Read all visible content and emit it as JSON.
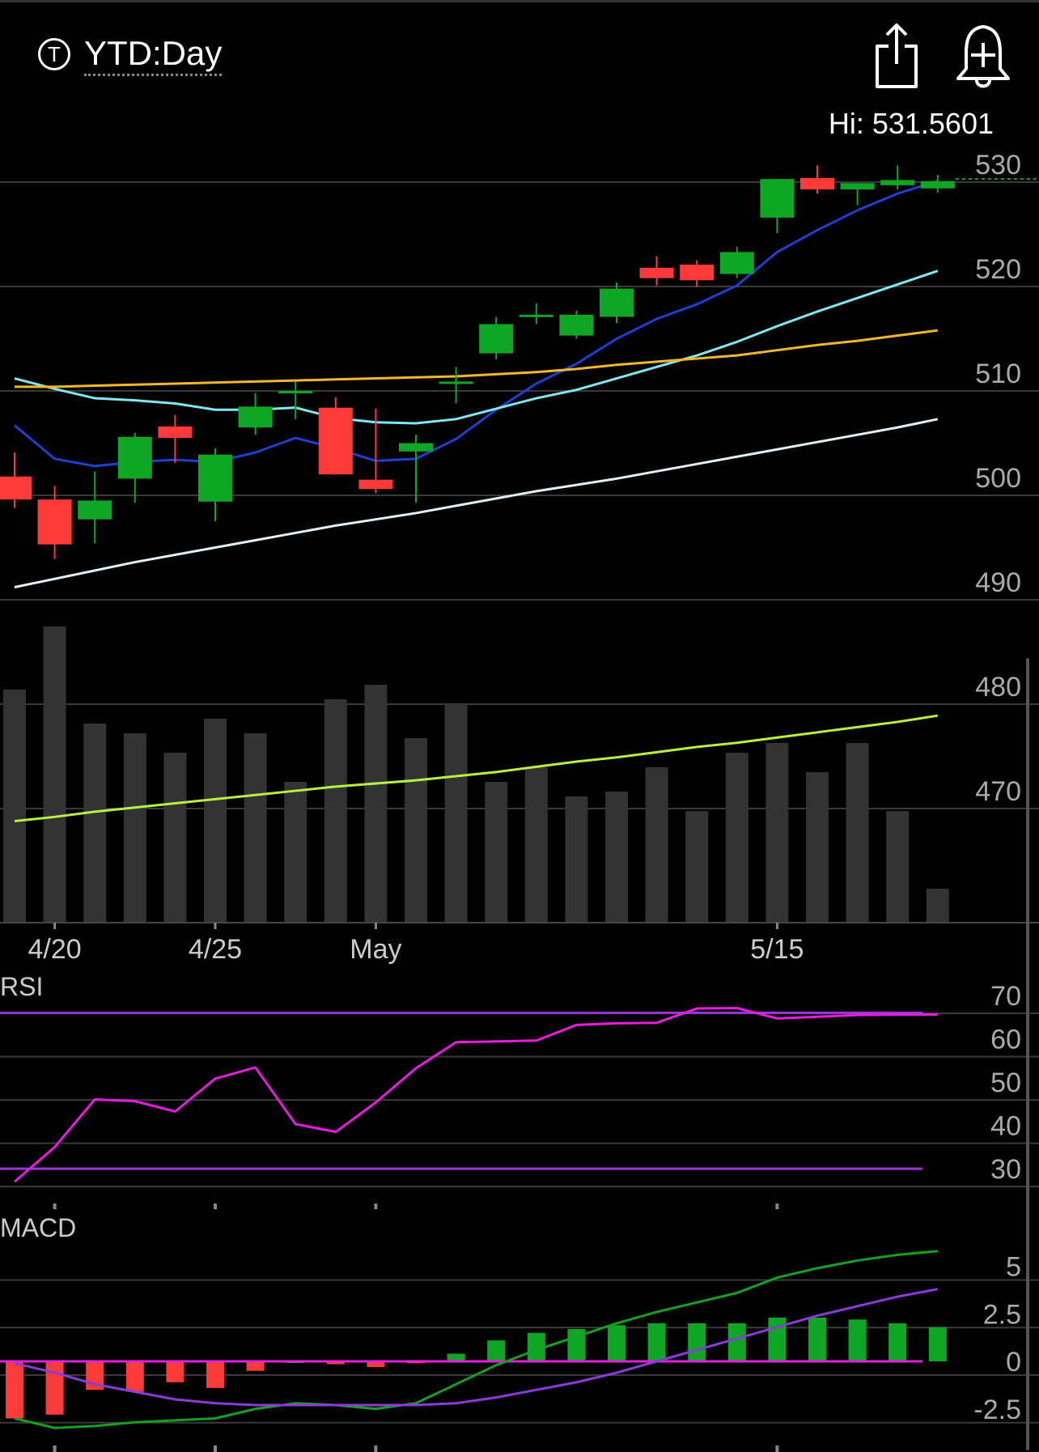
{
  "header": {
    "ticker_icon_text": "T",
    "period_label": "YTD:Day",
    "share_icon": "share-icon",
    "alert_icon": "bell-plus-icon"
  },
  "colors": {
    "up": "#0fa626",
    "down": "#fc3a3a",
    "volume": "#333333",
    "ma_blue": "#1e3fd0",
    "ma_cyan": "#7fe8f0",
    "ma_yellow": "#f2b82a",
    "ma_white": "#e0f0f8",
    "ma_lime": "#b8f040",
    "rsi_line": "#e81ce0",
    "rsi_band": "#9a34d8",
    "macd_line": "#14a020",
    "signal_line": "#8a3ad8",
    "grid": "#3a3a3a",
    "axis_text": "#aaaaaa"
  },
  "chart_data": [
    {
      "type": "candlestick",
      "annotation": "Hi: 531.5601",
      "ylim": [
        460,
        533
      ],
      "y_ticks": [
        530,
        520,
        510,
        500,
        490,
        480,
        470
      ],
      "x_tick_labels": [
        {
          "label": "4/20",
          "index": 1
        },
        {
          "label": "4/25",
          "index": 5
        },
        {
          "label": "May",
          "index": 9
        },
        {
          "label": "5/15",
          "index": 19
        }
      ],
      "candles": [
        {
          "o": 501.8,
          "h": 504.1,
          "l": 498.8,
          "c": 499.6
        },
        {
          "o": 499.6,
          "h": 500.9,
          "l": 493.9,
          "c": 495.3
        },
        {
          "o": 497.7,
          "h": 502.3,
          "l": 495.4,
          "c": 499.5
        },
        {
          "o": 501.6,
          "h": 506.0,
          "l": 499.3,
          "c": 505.6
        },
        {
          "o": 506.6,
          "h": 507.7,
          "l": 503.1,
          "c": 505.5
        },
        {
          "o": 499.4,
          "h": 504.5,
          "l": 497.5,
          "c": 503.9
        },
        {
          "o": 506.5,
          "h": 509.8,
          "l": 505.8,
          "c": 508.5
        },
        {
          "o": 510.0,
          "h": 510.9,
          "l": 507.3,
          "c": 510.0
        },
        {
          "o": 508.4,
          "h": 509.4,
          "l": 502.0,
          "c": 502.0
        },
        {
          "o": 501.5,
          "h": 508.3,
          "l": 500.2,
          "c": 500.6
        },
        {
          "o": 504.2,
          "h": 505.8,
          "l": 499.3,
          "c": 505.0
        },
        {
          "o": 510.9,
          "h": 512.3,
          "l": 508.8,
          "c": 510.9
        },
        {
          "o": 513.6,
          "h": 517.1,
          "l": 513.0,
          "c": 516.4
        },
        {
          "o": 517.3,
          "h": 518.4,
          "l": 516.4,
          "c": 517.3
        },
        {
          "o": 515.3,
          "h": 517.7,
          "l": 515.0,
          "c": 517.3
        },
        {
          "o": 517.1,
          "h": 520.4,
          "l": 516.5,
          "c": 519.8
        },
        {
          "o": 521.8,
          "h": 522.9,
          "l": 520.1,
          "c": 520.8
        },
        {
          "o": 522.1,
          "h": 522.5,
          "l": 520.0,
          "c": 520.6
        },
        {
          "o": 521.2,
          "h": 523.8,
          "l": 520.8,
          "c": 523.3
        },
        {
          "o": 526.6,
          "h": 530.1,
          "l": 525.1,
          "c": 530.3
        },
        {
          "o": 530.4,
          "h": 531.6,
          "l": 528.9,
          "c": 529.3
        },
        {
          "o": 529.3,
          "h": 529.7,
          "l": 527.8,
          "c": 529.9
        },
        {
          "o": 529.7,
          "h": 531.6,
          "l": 529.3,
          "c": 530.2
        },
        {
          "o": 529.4,
          "h": 530.7,
          "l": 529.0,
          "c": 530.1
        }
      ],
      "last_price_partial": 530.3,
      "volume": [
        0.48,
        0.61,
        0.41,
        0.39,
        0.35,
        0.42,
        0.39,
        0.29,
        0.46,
        0.49,
        0.38,
        0.45,
        0.29,
        0.32,
        0.26,
        0.27,
        0.32,
        0.23,
        0.35,
        0.37,
        0.31,
        0.37,
        0.23,
        0.07
      ],
      "moving_averages": [
        {
          "color_key": "ma_blue",
          "values": [
            506.7,
            503.5,
            502.8,
            503.2,
            503.4,
            503.2,
            504.1,
            505.5,
            504.5,
            503.3,
            503.5,
            505.4,
            508.2,
            510.7,
            512.6,
            515.0,
            516.9,
            518.3,
            520.1,
            523.3,
            525.4,
            527.3,
            528.9,
            530.1
          ]
        },
        {
          "color_key": "ma_cyan",
          "values": [
            511.2,
            510.2,
            509.3,
            509.1,
            508.8,
            508.2,
            508.2,
            508.4,
            507.4,
            507.0,
            506.9,
            507.3,
            508.3,
            509.3,
            510.1,
            511.2,
            512.3,
            513.4,
            514.7,
            516.2,
            517.6,
            518.9,
            520.2,
            521.5
          ]
        },
        {
          "color_key": "ma_yellow",
          "values": [
            510.4,
            510.4,
            510.5,
            510.6,
            510.7,
            510.8,
            510.9,
            511.0,
            511.1,
            511.2,
            511.3,
            511.4,
            511.6,
            511.8,
            512.1,
            512.5,
            512.8,
            513.1,
            513.4,
            513.9,
            514.4,
            514.8,
            515.3,
            515.8
          ]
        },
        {
          "color_key": "ma_white",
          "values": [
            491.2,
            492.0,
            492.8,
            493.6,
            494.3,
            495.0,
            495.7,
            496.4,
            497.1,
            497.7,
            498.3,
            499.0,
            499.7,
            500.4,
            501.0,
            501.6,
            502.3,
            503.0,
            503.7,
            504.4,
            505.1,
            505.8,
            506.5,
            507.3
          ]
        },
        {
          "color_key": "ma_lime",
          "values": [
            468.8,
            469.2,
            469.7,
            470.1,
            470.5,
            470.9,
            471.3,
            471.7,
            472.1,
            472.4,
            472.7,
            473.1,
            473.5,
            474.0,
            474.5,
            474.9,
            475.4,
            475.9,
            476.3,
            476.8,
            477.3,
            477.8,
            478.3,
            478.9
          ]
        }
      ]
    },
    {
      "type": "line",
      "title": "RSI",
      "ylim": [
        25,
        72
      ],
      "y_ticks": [
        70,
        60,
        50,
        40,
        30
      ],
      "bands": [
        66,
        30
      ],
      "values": [
        27,
        35,
        46,
        45.6,
        43.2,
        50.8,
        53.4,
        40.3,
        38.5,
        45.3,
        53.2,
        59.2,
        59.4,
        59.6,
        63.2,
        63.6,
        63.7,
        67,
        67.1,
        64.7,
        65.1,
        65.5,
        65.6,
        65.6
      ]
    },
    {
      "type": "bar",
      "title": "MACD",
      "ylim": [
        -4.8,
        6.3
      ],
      "y_ticks": [
        5,
        2.5,
        0,
        -2.5
      ],
      "histogram": [
        -3.0,
        -2.8,
        -1.5,
        -1.6,
        -1.1,
        -1.4,
        -0.5,
        0,
        -0.15,
        -0.3,
        -0.1,
        0.4,
        1.1,
        1.5,
        1.7,
        1.9,
        2.0,
        2.0,
        2.0,
        2.3,
        2.3,
        2.2,
        2.0,
        1.8
      ],
      "macd_line": [
        -3.0,
        -3.5,
        -3.4,
        -3.2,
        -3.1,
        -3.0,
        -2.5,
        -2.2,
        -2.3,
        -2.5,
        -2.2,
        -1.2,
        -0.2,
        0.6,
        1.3,
        2.0,
        2.6,
        3.1,
        3.6,
        4.4,
        4.9,
        5.3,
        5.6,
        5.8
      ],
      "signal_line": [
        -0.1,
        -0.6,
        -1.2,
        -1.6,
        -2.0,
        -2.2,
        -2.3,
        -2.3,
        -2.3,
        -2.3,
        -2.3,
        -2.2,
        -1.9,
        -1.5,
        -1.1,
        -0.6,
        0.0,
        0.6,
        1.2,
        1.8,
        2.4,
        2.9,
        3.4,
        3.8
      ]
    }
  ]
}
